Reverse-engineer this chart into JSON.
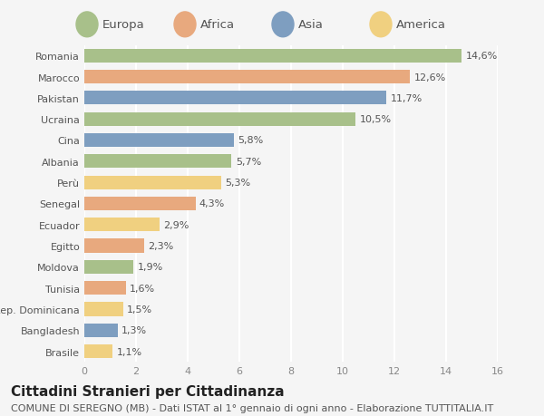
{
  "countries": [
    "Romania",
    "Marocco",
    "Pakistan",
    "Ucraina",
    "Cina",
    "Albania",
    "Perù",
    "Senegal",
    "Ecuador",
    "Egitto",
    "Moldova",
    "Tunisia",
    "Rep. Dominicana",
    "Bangladesh",
    "Brasile"
  ],
  "values": [
    14.6,
    12.6,
    11.7,
    10.5,
    5.8,
    5.7,
    5.3,
    4.3,
    2.9,
    2.3,
    1.9,
    1.6,
    1.5,
    1.3,
    1.1
  ],
  "labels": [
    "14,6%",
    "12,6%",
    "11,7%",
    "10,5%",
    "5,8%",
    "5,7%",
    "5,3%",
    "4,3%",
    "2,9%",
    "2,3%",
    "1,9%",
    "1,6%",
    "1,5%",
    "1,3%",
    "1,1%"
  ],
  "regions": [
    "Europa",
    "Africa",
    "Asia",
    "Europa",
    "Asia",
    "Europa",
    "America",
    "Africa",
    "America",
    "Africa",
    "Europa",
    "Africa",
    "America",
    "Asia",
    "America"
  ],
  "colors": {
    "Europa": "#a8c08a",
    "Africa": "#e8a97e",
    "Asia": "#7e9ec0",
    "America": "#f0d080"
  },
  "legend_order": [
    "Europa",
    "Africa",
    "Asia",
    "America"
  ],
  "xlim": [
    0,
    16
  ],
  "xticks": [
    0,
    2,
    4,
    6,
    8,
    10,
    12,
    14,
    16
  ],
  "title": "Cittadini Stranieri per Cittadinanza",
  "subtitle": "COMUNE DI SEREGNO (MB) - Dati ISTAT al 1° gennaio di ogni anno - Elaborazione TUTTITALIA.IT",
  "background_color": "#f5f5f5",
  "bar_height": 0.65,
  "grid_color": "#ffffff",
  "title_fontsize": 11,
  "subtitle_fontsize": 8,
  "label_fontsize": 8,
  "tick_fontsize": 8,
  "legend_fontsize": 9.5
}
